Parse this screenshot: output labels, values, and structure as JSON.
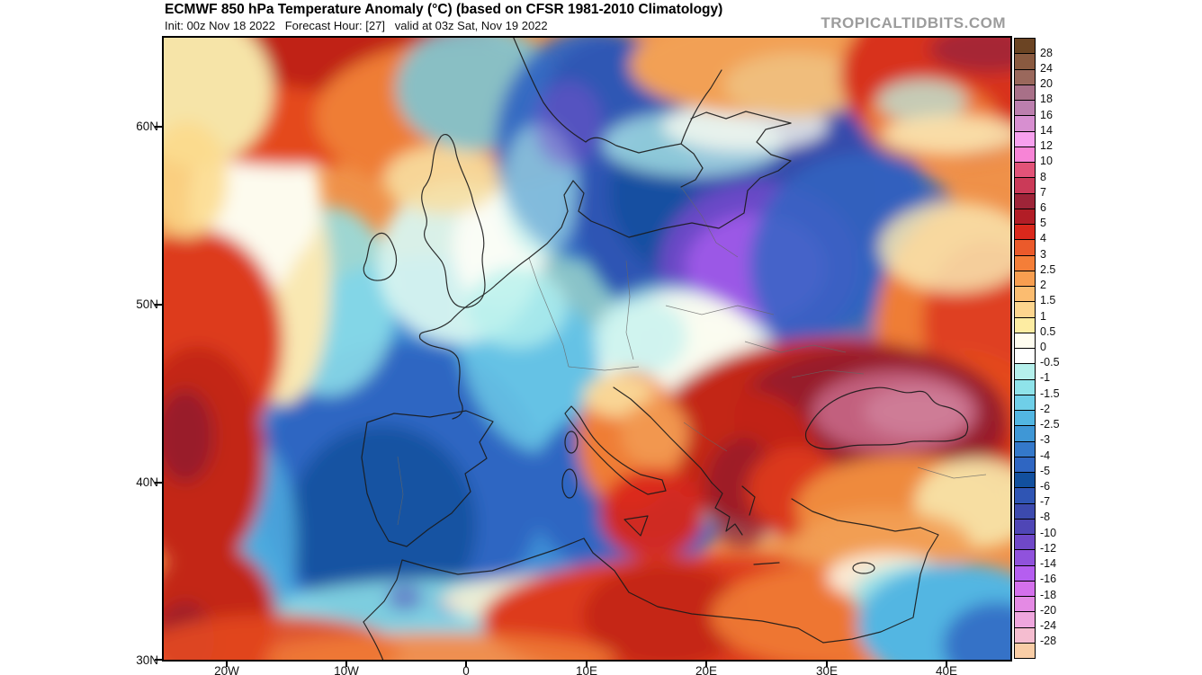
{
  "header": {
    "title": "ECMWF 850 hPa Temperature Anomaly (°C) (based on CFSR 1981-2010 Climatology)",
    "init_line": "Init: 00z Nov 18 2022   Forecast Hour: [27]   valid at 03z Sat, Nov 19 2022",
    "watermark": "TROPICALTIDBITS.COM"
  },
  "map": {
    "lat_labels": [
      "60N",
      "50N",
      "40N",
      "30N"
    ],
    "lon_labels": [
      "20W",
      "10W",
      "0",
      "10E",
      "20E",
      "30E",
      "40E"
    ]
  },
  "colorbar": {
    "tick_labels": [
      "28",
      "24",
      "20",
      "18",
      "16",
      "14",
      "12",
      "10",
      "8",
      "7",
      "6",
      "5",
      "4",
      "3",
      "2.5",
      "2",
      "1.5",
      "1",
      "0.5",
      "0",
      "-0.5",
      "-1",
      "-1.5",
      "-2",
      "-2.5",
      "-3",
      "-4",
      "-5",
      "-6",
      "-7",
      "-8",
      "-10",
      "-12",
      "-14",
      "-16",
      "-18",
      "-20",
      "-24",
      "-28"
    ],
    "segment_colors": [
      "#6b4423",
      "#8a5a40",
      "#9a685c",
      "#a87088",
      "#bc7fae",
      "#d78fd0",
      "#f7a0ee",
      "#f784d6",
      "#e25378",
      "#cb3a58",
      "#9e2438",
      "#b21d26",
      "#d9281c",
      "#eb5a2b",
      "#f47e38",
      "#f89e50",
      "#fbbc70",
      "#fdd58e",
      "#fdeca2",
      "#fffdf0",
      "#ffffff",
      "#b5f0ec",
      "#8fe3ea",
      "#6fcfe8",
      "#52b6e2",
      "#3f97d6",
      "#3478ca",
      "#2f66c2",
      "#12509e",
      "#2f55b4",
      "#3c4aae",
      "#4f46b6",
      "#6f48c8",
      "#9052dc",
      "#b55ef0",
      "#d470ec",
      "#e48ae4",
      "#efa6de",
      "#f5bdd0",
      "#f9cda6"
    ]
  }
}
